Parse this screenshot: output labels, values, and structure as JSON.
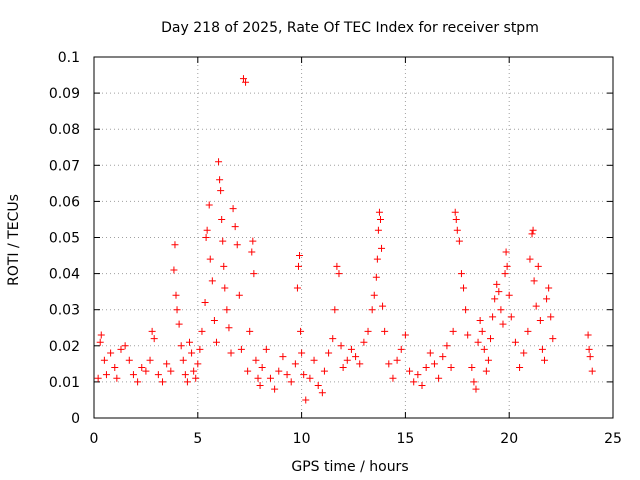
{
  "chart_data": {
    "type": "scatter",
    "title": "Day 218 of 2025, Rate Of TEC Index for receiver stpm",
    "xlabel": "GPS time / hours",
    "ylabel": "ROTI / TECUs",
    "xlim": [
      0,
      25
    ],
    "ylim": [
      0,
      0.1
    ],
    "xticks": [
      "0",
      "5",
      "10",
      "15",
      "20",
      "25"
    ],
    "yticks": [
      "0",
      "0.01",
      "0.02",
      "0.03",
      "0.04",
      "0.05",
      "0.06",
      "0.07",
      "0.08",
      "0.09",
      "0.1"
    ],
    "grid": true,
    "marker": "+",
    "color": "#ff0000",
    "points": [
      [
        0.2,
        0.011
      ],
      [
        0.3,
        0.021
      ],
      [
        0.35,
        0.023
      ],
      [
        0.5,
        0.016
      ],
      [
        0.6,
        0.012
      ],
      [
        0.8,
        0.018
      ],
      [
        1.0,
        0.014
      ],
      [
        1.1,
        0.011
      ],
      [
        1.3,
        0.019
      ],
      [
        1.5,
        0.02
      ],
      [
        1.7,
        0.016
      ],
      [
        1.9,
        0.012
      ],
      [
        2.1,
        0.01
      ],
      [
        2.3,
        0.014
      ],
      [
        2.5,
        0.013
      ],
      [
        2.7,
        0.016
      ],
      [
        2.8,
        0.024
      ],
      [
        2.9,
        0.022
      ],
      [
        3.1,
        0.012
      ],
      [
        3.3,
        0.01
      ],
      [
        3.5,
        0.015
      ],
      [
        3.7,
        0.013
      ],
      [
        3.85,
        0.041
      ],
      [
        3.9,
        0.048
      ],
      [
        3.95,
        0.034
      ],
      [
        4.0,
        0.03
      ],
      [
        4.1,
        0.026
      ],
      [
        4.2,
        0.02
      ],
      [
        4.3,
        0.016
      ],
      [
        4.4,
        0.012
      ],
      [
        4.5,
        0.01
      ],
      [
        4.6,
        0.021
      ],
      [
        4.7,
        0.018
      ],
      [
        4.8,
        0.013
      ],
      [
        4.9,
        0.011
      ],
      [
        5.0,
        0.015
      ],
      [
        5.1,
        0.019
      ],
      [
        5.2,
        0.024
      ],
      [
        5.35,
        0.032
      ],
      [
        5.4,
        0.05
      ],
      [
        5.45,
        0.052
      ],
      [
        5.55,
        0.059
      ],
      [
        5.6,
        0.044
      ],
      [
        5.7,
        0.038
      ],
      [
        5.8,
        0.027
      ],
      [
        5.9,
        0.021
      ],
      [
        6.0,
        0.071
      ],
      [
        6.05,
        0.066
      ],
      [
        6.1,
        0.063
      ],
      [
        6.15,
        0.055
      ],
      [
        6.2,
        0.049
      ],
      [
        6.25,
        0.042
      ],
      [
        6.3,
        0.036
      ],
      [
        6.4,
        0.03
      ],
      [
        6.5,
        0.025
      ],
      [
        6.6,
        0.018
      ],
      [
        6.7,
        0.058
      ],
      [
        6.8,
        0.053
      ],
      [
        6.9,
        0.048
      ],
      [
        7.0,
        0.034
      ],
      [
        7.1,
        0.019
      ],
      [
        7.2,
        0.094
      ],
      [
        7.3,
        0.093
      ],
      [
        7.4,
        0.013
      ],
      [
        7.5,
        0.024
      ],
      [
        7.6,
        0.046
      ],
      [
        7.65,
        0.049
      ],
      [
        7.7,
        0.04
      ],
      [
        7.8,
        0.016
      ],
      [
        7.9,
        0.011
      ],
      [
        8.0,
        0.009
      ],
      [
        8.1,
        0.014
      ],
      [
        8.3,
        0.019
      ],
      [
        8.5,
        0.011
      ],
      [
        8.7,
        0.008
      ],
      [
        8.9,
        0.013
      ],
      [
        9.1,
        0.017
      ],
      [
        9.3,
        0.012
      ],
      [
        9.5,
        0.01
      ],
      [
        9.7,
        0.015
      ],
      [
        9.8,
        0.036
      ],
      [
        9.85,
        0.042
      ],
      [
        9.9,
        0.045
      ],
      [
        9.95,
        0.024
      ],
      [
        10.0,
        0.018
      ],
      [
        10.1,
        0.012
      ],
      [
        10.2,
        0.005
      ],
      [
        10.4,
        0.011
      ],
      [
        10.6,
        0.016
      ],
      [
        10.8,
        0.009
      ],
      [
        11.0,
        0.007
      ],
      [
        11.1,
        0.013
      ],
      [
        11.3,
        0.018
      ],
      [
        11.5,
        0.022
      ],
      [
        11.6,
        0.03
      ],
      [
        11.7,
        0.042
      ],
      [
        11.8,
        0.04
      ],
      [
        11.9,
        0.02
      ],
      [
        12.0,
        0.014
      ],
      [
        12.2,
        0.016
      ],
      [
        12.4,
        0.019
      ],
      [
        12.6,
        0.017
      ],
      [
        12.8,
        0.015
      ],
      [
        13.0,
        0.021
      ],
      [
        13.2,
        0.024
      ],
      [
        13.4,
        0.03
      ],
      [
        13.5,
        0.034
      ],
      [
        13.6,
        0.039
      ],
      [
        13.65,
        0.044
      ],
      [
        13.7,
        0.052
      ],
      [
        13.75,
        0.057
      ],
      [
        13.8,
        0.055
      ],
      [
        13.85,
        0.047
      ],
      [
        13.9,
        0.031
      ],
      [
        14.0,
        0.024
      ],
      [
        14.2,
        0.015
      ],
      [
        14.4,
        0.011
      ],
      [
        14.6,
        0.016
      ],
      [
        14.8,
        0.019
      ],
      [
        15.0,
        0.023
      ],
      [
        15.2,
        0.013
      ],
      [
        15.4,
        0.01
      ],
      [
        15.6,
        0.012
      ],
      [
        15.8,
        0.009
      ],
      [
        16.0,
        0.014
      ],
      [
        16.2,
        0.018
      ],
      [
        16.4,
        0.015
      ],
      [
        16.6,
        0.011
      ],
      [
        16.8,
        0.017
      ],
      [
        17.0,
        0.02
      ],
      [
        17.2,
        0.014
      ],
      [
        17.3,
        0.024
      ],
      [
        17.4,
        0.057
      ],
      [
        17.45,
        0.055
      ],
      [
        17.5,
        0.052
      ],
      [
        17.6,
        0.049
      ],
      [
        17.7,
        0.04
      ],
      [
        17.8,
        0.036
      ],
      [
        17.9,
        0.03
      ],
      [
        18.0,
        0.023
      ],
      [
        18.2,
        0.014
      ],
      [
        18.3,
        0.01
      ],
      [
        18.4,
        0.008
      ],
      [
        18.5,
        0.021
      ],
      [
        18.6,
        0.027
      ],
      [
        18.7,
        0.024
      ],
      [
        18.8,
        0.019
      ],
      [
        18.9,
        0.013
      ],
      [
        19.0,
        0.016
      ],
      [
        19.1,
        0.022
      ],
      [
        19.2,
        0.028
      ],
      [
        19.3,
        0.033
      ],
      [
        19.4,
        0.037
      ],
      [
        19.5,
        0.035
      ],
      [
        19.6,
        0.03
      ],
      [
        19.7,
        0.026
      ],
      [
        19.8,
        0.04
      ],
      [
        19.85,
        0.046
      ],
      [
        19.9,
        0.042
      ],
      [
        20.0,
        0.034
      ],
      [
        20.1,
        0.028
      ],
      [
        20.3,
        0.021
      ],
      [
        20.5,
        0.014
      ],
      [
        20.7,
        0.018
      ],
      [
        20.9,
        0.024
      ],
      [
        21.0,
        0.044
      ],
      [
        21.1,
        0.051
      ],
      [
        21.15,
        0.052
      ],
      [
        21.2,
        0.038
      ],
      [
        21.3,
        0.031
      ],
      [
        21.4,
        0.042
      ],
      [
        21.5,
        0.027
      ],
      [
        21.6,
        0.019
      ],
      [
        21.7,
        0.016
      ],
      [
        21.8,
        0.033
      ],
      [
        21.9,
        0.036
      ],
      [
        22.0,
        0.028
      ],
      [
        22.1,
        0.022
      ],
      [
        23.8,
        0.023
      ],
      [
        23.85,
        0.019
      ],
      [
        23.9,
        0.017
      ],
      [
        24.0,
        0.013
      ]
    ]
  }
}
